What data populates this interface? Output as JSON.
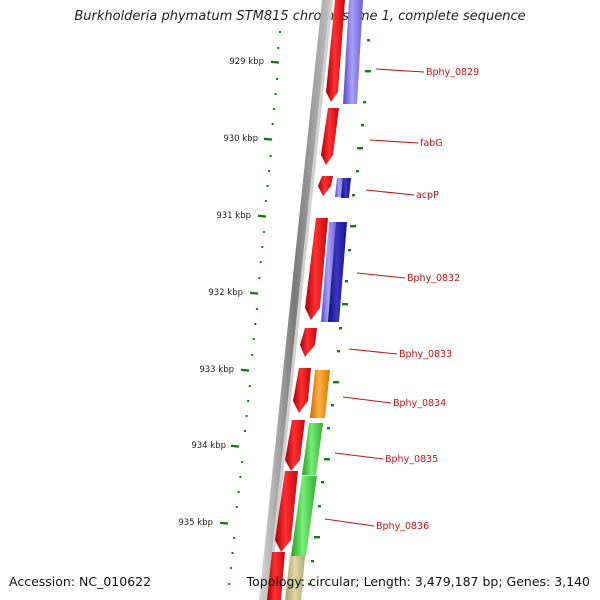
{
  "title": "Burkholderia phymatum STM815 chromosome 1, complete sequence",
  "footer": {
    "accession": "Accession: NC_010622",
    "topology": "Topology: circular; Length: 3,479,187 bp; Genes: 3,140"
  },
  "colors": {
    "forward_cds": "#e8141c",
    "reverse_cds": "#7b6fe0",
    "reverse_cds_dark": "#1c1890",
    "orange_feature": "#f0900a",
    "green_feature": "#3cc83c",
    "olive_feature": "#c8c08a",
    "tick": "#1a7a1a",
    "label": "#cc1111",
    "backbone": "#8a8a8a"
  },
  "ticks": [
    {
      "kbp": 929,
      "label": "929 kbp"
    },
    {
      "kbp": 930,
      "label": "930 kbp"
    },
    {
      "kbp": 931,
      "label": "931 kbp"
    },
    {
      "kbp": 932,
      "label": "932 kbp"
    },
    {
      "kbp": 933,
      "label": "933 kbp"
    },
    {
      "kbp": 934,
      "label": "934 kbp"
    },
    {
      "kbp": 935,
      "label": "935 kbp"
    }
  ],
  "features": [
    {
      "label": "Bphy_0829",
      "color_key": "reverse_cds"
    },
    {
      "label": "fabG",
      "color_key": "forward_cds"
    },
    {
      "label": "acpP",
      "color_key": "reverse_cds_dark"
    },
    {
      "label": "Bphy_0832",
      "color_key": "reverse_cds_dark"
    },
    {
      "label": "Bphy_0833",
      "color_key": "forward_cds"
    },
    {
      "label": "Bphy_0834",
      "color_key": "orange_feature"
    },
    {
      "label": "Bphy_0835",
      "color_key": "green_feature"
    },
    {
      "label": "Bphy_0836",
      "color_key": "green_feature"
    }
  ]
}
